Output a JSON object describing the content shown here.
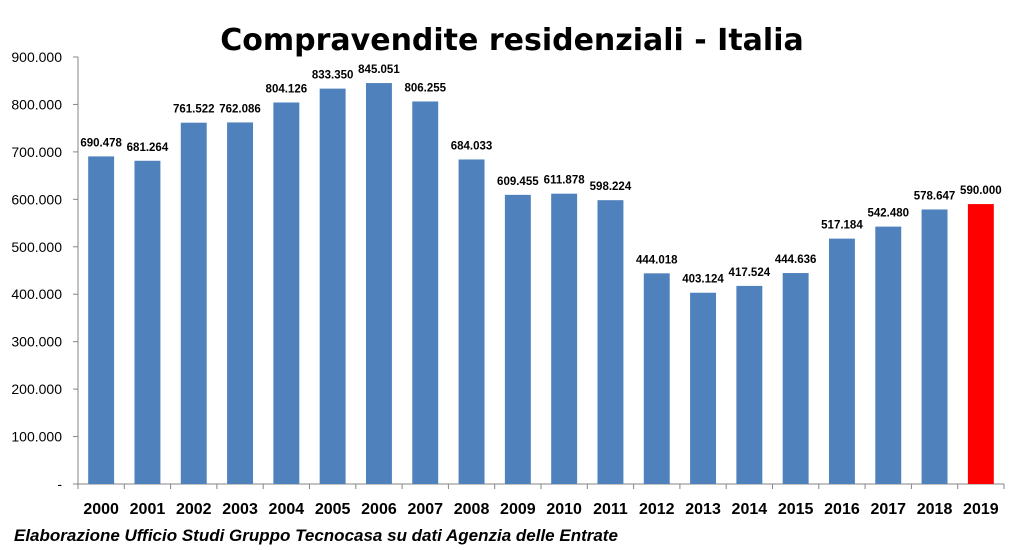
{
  "chart_data": {
    "type": "bar",
    "title": "Compravendite residenziali - Italia",
    "categories": [
      "2000",
      "2001",
      "2002",
      "2003",
      "2004",
      "2005",
      "2006",
      "2007",
      "2008",
      "2009",
      "2010",
      "2011",
      "2012",
      "2013",
      "2014",
      "2015",
      "2016",
      "2017",
      "2018",
      "2019"
    ],
    "values": [
      690478,
      681264,
      761522,
      762086,
      804126,
      833350,
      845051,
      806255,
      684033,
      609455,
      611878,
      598224,
      444018,
      403124,
      417524,
      444636,
      517184,
      542480,
      578647,
      590000
    ],
    "data_labels": [
      "690.478",
      "681.264",
      "761.522",
      "762.086",
      "804.126",
      "833.350",
      "845.051",
      "806.255",
      "684.033",
      "609.455",
      "611.878",
      "598.224",
      "444.018",
      "403.124",
      "417.524",
      "444.636",
      "517.184",
      "542.480",
      "578.647",
      "590.000"
    ],
    "yticks": [
      0,
      100000,
      200000,
      300000,
      400000,
      500000,
      600000,
      700000,
      800000,
      900000
    ],
    "ytick_labels": [
      "-",
      "100.000",
      "200.000",
      "300.000",
      "400.000",
      "500.000",
      "600.000",
      "700.000",
      "800.000",
      "900.000"
    ],
    "ylim": [
      0,
      900000
    ],
    "xlabel": "",
    "ylabel": "",
    "grid": false,
    "bar_color": "#4f81bd",
    "highlight_index": 19,
    "highlight_color": "#ff0000",
    "highlight_label_color": "#ff0000"
  },
  "source_note": "Elaborazione Ufficio Studi Gruppo Tecnocasa su dati Agenzia delle Entrate"
}
